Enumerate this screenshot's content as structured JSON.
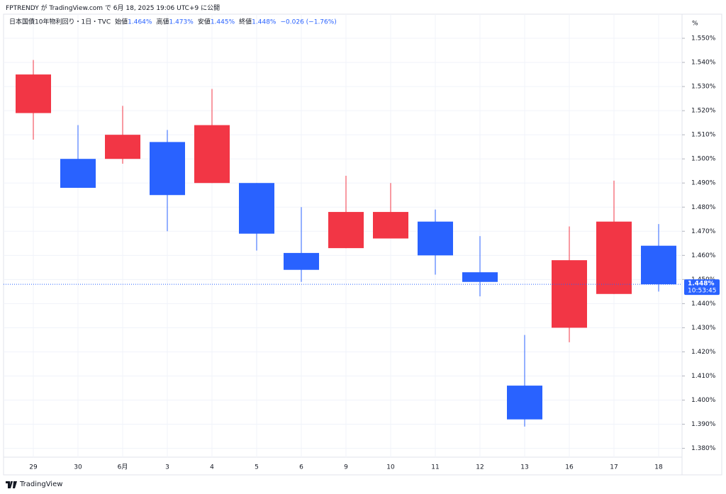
{
  "header": "FPTRENDY が TradingView.com で 6月 18, 2025 19:06 UTC+9 に公開",
  "footer": "TradingView",
  "chart_data": {
    "type": "candlestick",
    "title": "日本国債10年物利回り・1日・TVC",
    "ohlc_legend": [
      {
        "label": "始値",
        "value": "1.464%"
      },
      {
        "label": "高値",
        "value": "1.473%"
      },
      {
        "label": "安値",
        "value": "1.445%"
      },
      {
        "label": "終値",
        "value": "1.448%"
      }
    ],
    "change": "−0.026 (−1.76%)",
    "unit": "%",
    "categories": [
      "29",
      "30",
      "6月",
      "3",
      "4",
      "5",
      "6",
      "9",
      "10",
      "11",
      "12",
      "13",
      "16",
      "17",
      "18"
    ],
    "open": [
      1.519,
      1.5,
      1.5,
      1.507,
      1.49,
      1.49,
      1.461,
      1.463,
      1.467,
      1.474,
      1.453,
      1.406,
      1.43,
      1.444,
      1.464
    ],
    "high": [
      1.541,
      1.514,
      1.522,
      1.512,
      1.529,
      1.49,
      1.48,
      1.493,
      1.49,
      1.479,
      1.468,
      1.427,
      1.472,
      1.491,
      1.473
    ],
    "low": [
      1.508,
      1.488,
      1.498,
      1.47,
      1.49,
      1.462,
      1.449,
      1.463,
      1.467,
      1.452,
      1.443,
      1.389,
      1.424,
      1.444,
      1.445
    ],
    "close": [
      1.535,
      1.488,
      1.51,
      1.485,
      1.514,
      1.469,
      1.454,
      1.478,
      1.478,
      1.46,
      1.449,
      1.392,
      1.458,
      1.474,
      1.448
    ],
    "up_color": "#f23645",
    "down_color": "#2962ff",
    "ylim": [
      1.369,
      1.56
    ],
    "yticks": [
      {
        "value": 1.38,
        "label": "1.380%"
      },
      {
        "value": 1.39,
        "label": "1.390%"
      },
      {
        "value": 1.4,
        "label": "1.400%"
      },
      {
        "value": 1.41,
        "label": "1.410%"
      },
      {
        "value": 1.42,
        "label": "1.420%"
      },
      {
        "value": 1.43,
        "label": "1.430%"
      },
      {
        "value": 1.44,
        "label": "1.440%"
      },
      {
        "value": 1.45,
        "label": "1.450%"
      },
      {
        "value": 1.46,
        "label": "1.460%"
      },
      {
        "value": 1.47,
        "label": "1.470%"
      },
      {
        "value": 1.48,
        "label": "1.480%"
      },
      {
        "value": 1.49,
        "label": "1.490%"
      },
      {
        "value": 1.5,
        "label": "1.500%"
      },
      {
        "value": 1.51,
        "label": "1.510%"
      },
      {
        "value": 1.52,
        "label": "1.520%"
      },
      {
        "value": 1.53,
        "label": "1.530%"
      },
      {
        "value": 1.54,
        "label": "1.540%"
      },
      {
        "value": 1.55,
        "label": "1.550%"
      }
    ],
    "last_price": {
      "value": 1.448,
      "label": "1.448%",
      "countdown": "10:53:45"
    },
    "grid": true
  }
}
